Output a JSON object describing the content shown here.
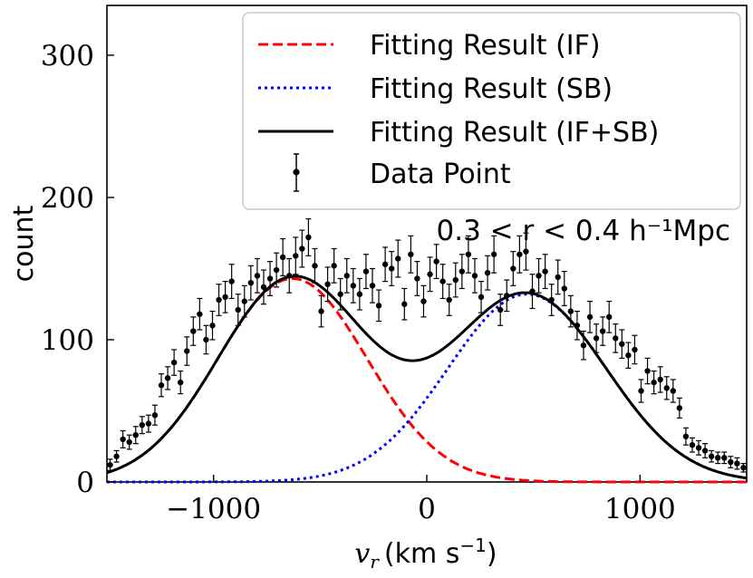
{
  "chart_data": {
    "type": "scatter",
    "xlabel": "v_r (km s^-1)",
    "xlabel_var": "v",
    "xlabel_sub": "r",
    "xlabel_unit": "(km s",
    "xlabel_exp": "−1",
    "xlabel_close": ")",
    "ylabel": "count",
    "xlim": [
      -1500,
      1500
    ],
    "ylim": [
      0,
      335
    ],
    "xticks": [
      -1000,
      0,
      1000
    ],
    "xtick_labels": [
      "−1000",
      "0",
      "1000"
    ],
    "yticks": [
      0,
      100,
      200,
      300
    ],
    "ytick_labels": [
      "0",
      "100",
      "200",
      "300"
    ],
    "grid": false,
    "legend_position": "top-right",
    "annotation": "0.3 < r < 0.4 h⁻¹Mpc",
    "legend": [
      {
        "label": "Fitting Result (IF)",
        "style": "dashed",
        "color": "#ff0000"
      },
      {
        "label": "Fitting Result (SB)",
        "style": "dotted",
        "color": "#0000ff"
      },
      {
        "label": "Fitting Result (IF+SB)",
        "style": "solid",
        "color": "#000000"
      },
      {
        "label": "Data Point",
        "style": "errorbar",
        "color": "#000000"
      }
    ],
    "model": {
      "if": {
        "amplitude": 143,
        "mean": -630,
        "sigma": 350
      },
      "sb": {
        "amplitude": 132,
        "mean": 470,
        "sigma": 370
      }
    },
    "data_points": {
      "x": [
        -1485,
        -1455,
        -1425,
        -1395,
        -1365,
        -1335,
        -1305,
        -1275,
        -1245,
        -1215,
        -1185,
        -1155,
        -1125,
        -1095,
        -1065,
        -1035,
        -1005,
        -975,
        -945,
        -915,
        -885,
        -855,
        -825,
        -795,
        -765,
        -735,
        -705,
        -675,
        -645,
        -615,
        -585,
        -555,
        -525,
        -495,
        -465,
        -435,
        -405,
        -375,
        -345,
        -315,
        -285,
        -255,
        -225,
        -195,
        -165,
        -135,
        -105,
        -75,
        -45,
        -15,
        15,
        45,
        75,
        105,
        135,
        165,
        195,
        225,
        255,
        285,
        315,
        345,
        375,
        405,
        435,
        465,
        495,
        525,
        555,
        585,
        615,
        645,
        675,
        705,
        735,
        765,
        795,
        825,
        855,
        885,
        915,
        945,
        975,
        1005,
        1035,
        1065,
        1095,
        1125,
        1155,
        1185,
        1215,
        1245,
        1275,
        1305,
        1335,
        1365,
        1395,
        1425,
        1455,
        1485
      ],
      "y": [
        12,
        18,
        30,
        28,
        33,
        40,
        41,
        47,
        68,
        73,
        84,
        70,
        92,
        106,
        118,
        100,
        110,
        128,
        130,
        141,
        121,
        127,
        140,
        145,
        137,
        143,
        149,
        158,
        145,
        159,
        164,
        172,
        152,
        120,
        139,
        152,
        132,
        145,
        138,
        132,
        148,
        138,
        124,
        153,
        150,
        157,
        125,
        160,
        143,
        127,
        146,
        155,
        141,
        128,
        142,
        148,
        160,
        145,
        130,
        147,
        160,
        121,
        131,
        150,
        160,
        162,
        134,
        145,
        148,
        128,
        144,
        136,
        120,
        110,
        96,
        116,
        101,
        106,
        116,
        101,
        97,
        89,
        93,
        64,
        78,
        70,
        72,
        66,
        64,
        52,
        32,
        26,
        24,
        22,
        18,
        17,
        17,
        14,
        13,
        10
      ],
      "err": [
        4,
        4,
        6,
        5,
        6,
        6,
        6,
        7,
        8,
        8,
        9,
        8,
        10,
        10,
        11,
        10,
        10,
        11,
        11,
        12,
        11,
        11,
        12,
        12,
        12,
        12,
        12,
        13,
        12,
        13,
        13,
        13,
        12,
        11,
        12,
        12,
        11,
        12,
        12,
        11,
        12,
        12,
        11,
        12,
        12,
        13,
        11,
        13,
        12,
        11,
        12,
        12,
        12,
        11,
        12,
        12,
        13,
        12,
        11,
        12,
        13,
        11,
        11,
        12,
        13,
        13,
        12,
        12,
        12,
        11,
        12,
        12,
        11,
        10,
        10,
        11,
        10,
        10,
        11,
        10,
        10,
        9,
        10,
        8,
        9,
        8,
        9,
        8,
        8,
        7,
        6,
        5,
        5,
        5,
        4,
        4,
        4,
        4,
        4,
        3
      ]
    }
  }
}
